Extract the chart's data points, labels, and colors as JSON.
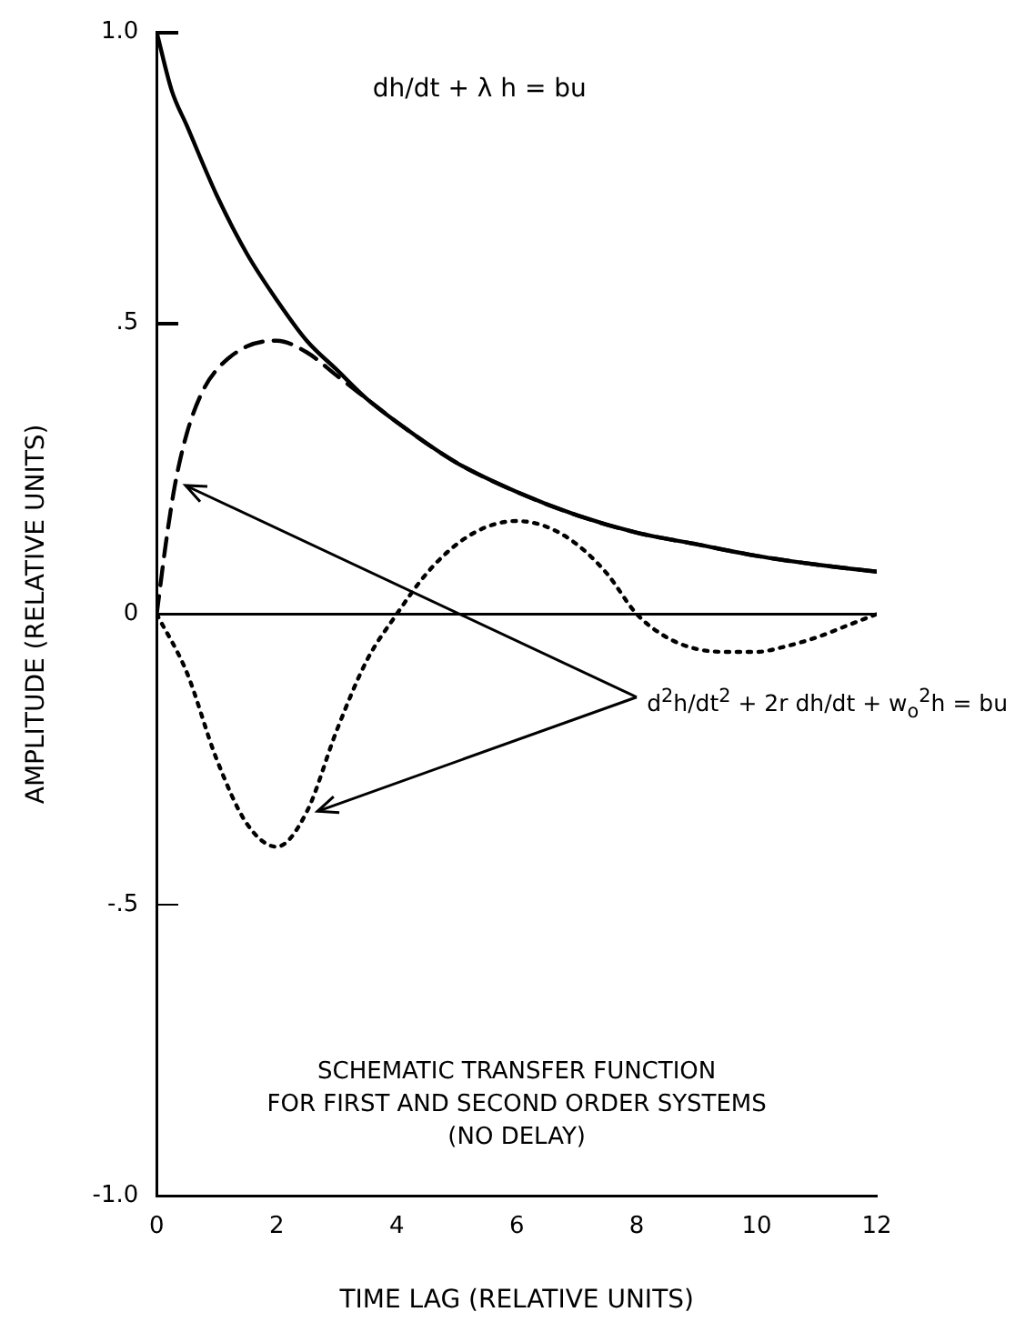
{
  "chart_data": {
    "type": "line",
    "xlabel": "TIME LAG (RELATIVE UNITS)",
    "ylabel": "AMPLITUDE (RELATIVE UNITS)",
    "xlim": [
      0,
      12
    ],
    "xticks": [
      0,
      2,
      4,
      6,
      8,
      10,
      12
    ],
    "ylim": [
      -1,
      1
    ],
    "yticks": [
      {
        "value": -1,
        "label": "-1.0"
      },
      {
        "value": -0.5,
        "label": "-.5"
      },
      0,
      {
        "value": 0.5,
        "label": ".5"
      },
      {
        "value": 1,
        "label": "1.0"
      }
    ],
    "grid": false,
    "legend": false,
    "marker": "none",
    "ref_lines": [
      {
        "axis": "y",
        "value": 0
      }
    ],
    "series": [
      {
        "color": "#000000",
        "line_style": "solid",
        "x": [
          0,
          0.25,
          0.5,
          1,
          1.5,
          2,
          2.5,
          3,
          3.5,
          4,
          5,
          6,
          7,
          8,
          9,
          10,
          11,
          12
        ],
        "values": [
          1,
          0.9,
          0.84,
          0.72,
          0.62,
          0.54,
          0.47,
          0.42,
          0.37,
          0.33,
          0.26,
          0.21,
          0.17,
          0.14,
          0.12,
          0.1,
          0.085,
          0.073
        ]
      },
      {
        "color": "#000000",
        "line_style": "dashed",
        "x": [
          0,
          0.15,
          0.3,
          0.5,
          0.75,
          1,
          1.5,
          2,
          2.5,
          3,
          3.5,
          4,
          5,
          6,
          7,
          8,
          9,
          10,
          11,
          12
        ],
        "values": [
          0,
          0.12,
          0.22,
          0.31,
          0.38,
          0.42,
          0.46,
          0.47,
          0.45,
          0.41,
          0.37,
          0.33,
          0.26,
          0.21,
          0.17,
          0.14,
          0.12,
          0.1,
          0.085,
          0.073
        ]
      },
      {
        "color": "#000000",
        "line_style": "dotted",
        "x": [
          0,
          0.5,
          1,
          1.5,
          2,
          2.5,
          3,
          3.5,
          4,
          4.5,
          5,
          5.5,
          6,
          6.5,
          7,
          7.5,
          8,
          8.5,
          9,
          9.5,
          10,
          10.5,
          11,
          11.5,
          12
        ],
        "values": [
          0,
          -0.1,
          -0.25,
          -0.36,
          -0.4,
          -0.34,
          -0.2,
          -0.08,
          0.0,
          0.07,
          0.12,
          0.15,
          0.16,
          0.15,
          0.12,
          0.07,
          0.0,
          -0.04,
          -0.06,
          -0.065,
          -0.065,
          -0.055,
          -0.04,
          -0.02,
          0
        ]
      }
    ],
    "annotations": [
      "dh/dt + λ h = bu",
      "d$^{2}$h/dt$^{2}$ + 2r dh/dt + w$_{o}$$^{2}$h = bu",
      "SCHEMATIC TRANSFER FUNCTION\nFOR FIRST AND SECOND ORDER SYSTEMS\n(NO DELAY)"
    ]
  }
}
